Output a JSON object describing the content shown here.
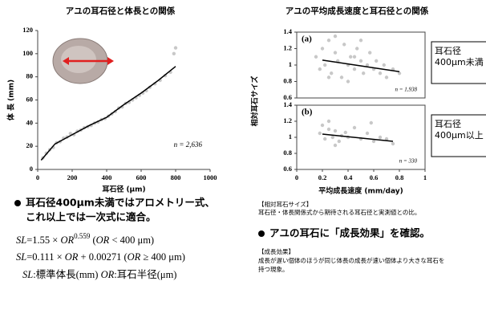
{
  "chart_data": [
    {
      "type": "scatter",
      "title": "アユの耳石径と体長との関係",
      "x_label": "耳石径 (μm)",
      "y_label": "体 長 (mm)",
      "annotation": "n = 2,636",
      "xlim": [
        0,
        1000
      ],
      "xticks": [
        0,
        200,
        400,
        600,
        800,
        1000
      ],
      "ylim": [
        0,
        120
      ],
      "yticks": [
        0,
        20,
        40,
        60,
        80,
        100,
        120
      ],
      "series": [
        {
          "type": "scatter",
          "color": "#c8c8c8",
          "x": [
            30,
            50,
            70,
            90,
            110,
            130,
            150,
            170,
            190,
            210,
            230,
            250,
            270,
            290,
            310,
            330,
            350,
            370,
            390,
            410,
            430,
            450,
            470,
            490,
            510,
            530,
            550,
            570,
            590,
            610,
            630,
            650,
            680,
            710,
            740,
            770,
            790,
            800
          ],
          "values": [
            10,
            14,
            17,
            19,
            23,
            24,
            27,
            28,
            31,
            30,
            33,
            34,
            36,
            37,
            38,
            40,
            41,
            43,
            44,
            46,
            48,
            50,
            53,
            54,
            57,
            58,
            60,
            62,
            64,
            66,
            68,
            71,
            74,
            77,
            81,
            84,
            100,
            105
          ]
        },
        {
          "type": "line",
          "color": "#000000",
          "x": [
            20,
            100,
            200,
            300,
            400,
            500,
            600,
            700,
            800
          ],
          "values": [
            8,
            22,
            30,
            38,
            45,
            56,
            66,
            77,
            89
          ]
        }
      ]
    },
    {
      "type": "scatter",
      "title": "アユの平均成長速度と耳石径との関係",
      "panel": "(a)",
      "y_label": "相対耳石サイズ",
      "annotation": "n = 1,938",
      "box": [
        "耳石径",
        "400μm未満"
      ],
      "xlim": [
        0,
        1
      ],
      "ylim": [
        0.6,
        1.4
      ],
      "yticks": [
        0.6,
        0.8,
        1,
        1.2,
        1.4
      ],
      "series": [
        {
          "type": "scatter",
          "color": "#c8c8c8",
          "x": [
            0.15,
            0.18,
            0.2,
            0.22,
            0.25,
            0.27,
            0.3,
            0.32,
            0.35,
            0.37,
            0.4,
            0.42,
            0.45,
            0.47,
            0.5,
            0.52,
            0.55,
            0.57,
            0.6,
            0.62,
            0.65,
            0.68,
            0.7,
            0.75,
            0.8,
            0.3,
            0.4,
            0.5,
            0.25,
            0.45
          ],
          "values": [
            1.1,
            0.95,
            1.2,
            1.0,
            1.3,
            0.9,
            1.15,
            1.05,
            0.85,
            1.25,
            1.0,
            1.1,
            0.95,
            1.2,
            1.05,
            0.9,
            1.0,
            1.15,
            0.95,
            1.05,
            0.9,
            1.0,
            0.85,
            0.95,
            0.9,
            1.35,
            0.8,
            1.3,
            0.85,
            1.1
          ]
        },
        {
          "type": "line",
          "color": "#000000",
          "x": [
            0.2,
            0.8
          ],
          "values": [
            1.06,
            0.92
          ]
        }
      ]
    },
    {
      "type": "scatter",
      "panel": "(b)",
      "x_label": "平均成長速度 (mm/day)",
      "annotation": "n = 330",
      "box": [
        "耳石径",
        "400μm以上"
      ],
      "xlim": [
        0,
        1
      ],
      "xticks": [
        0,
        0.2,
        0.4,
        0.6,
        0.8,
        1
      ],
      "ylim": [
        0.6,
        1.4
      ],
      "yticks": [
        0.6,
        0.8,
        1,
        1.2,
        1.4
      ],
      "series": [
        {
          "type": "scatter",
          "color": "#c8c8c8",
          "x": [
            0.18,
            0.2,
            0.22,
            0.25,
            0.28,
            0.3,
            0.33,
            0.35,
            0.4,
            0.45,
            0.5,
            0.55,
            0.6,
            0.65,
            0.7,
            0.75,
            0.25,
            0.3,
            0.38,
            0.58
          ],
          "values": [
            1.05,
            1.15,
            0.98,
            1.1,
            1.0,
            1.08,
            0.95,
            1.02,
            1.0,
            1.12,
            0.98,
            1.05,
            0.95,
            1.0,
            0.98,
            0.92,
            1.2,
            0.9,
            1.06,
            1.18
          ]
        },
        {
          "type": "line",
          "color": "#000000",
          "x": [
            0.2,
            0.75
          ],
          "values": [
            1.04,
            0.95
          ]
        }
      ]
    }
  ],
  "text": {
    "bullet1": [
      "耳石径400μm未満ではアロメトリー式、",
      "これ以上では一次式に適合。"
    ],
    "equations": [
      [
        "SL",
        "=1.55 × ",
        "OR",
        "0.559",
        "  (",
        "OR",
        " < 400 μm)"
      ],
      [
        "SL",
        "=0.111 × ",
        "OR",
        " + 0.00271  (",
        "OR",
        " ≥ 400 μm)"
      ],
      [
        "SL",
        ":標準体長(mm)  ",
        "OR",
        ":耳石半径(μm)"
      ]
    ],
    "note1": [
      "【相対耳石サイズ】",
      "耳石径・体長関係式から期待される耳石径と実測値との比。"
    ],
    "bullet2": "アユの耳石に「成長効果」を確認。",
    "note2": [
      "【成長効果】",
      "成長が遅い個体のほうが同じ体長の成長が速い個体より大きな耳石を",
      "持つ現象。"
    ]
  }
}
